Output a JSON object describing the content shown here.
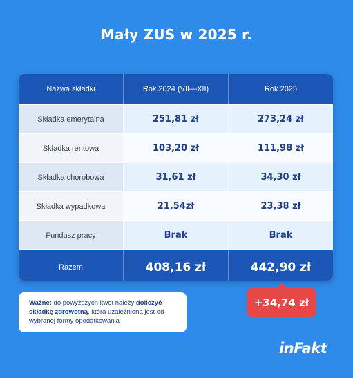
{
  "title": "Mały ZUS w 2025 r.",
  "table": {
    "headers": [
      "Nazwa składki",
      "Rok 2024 (VII—XII)",
      "Rok 2025"
    ],
    "rows": [
      {
        "name": "Składka emerytalna",
        "y2024": "251,81 zł",
        "y2025": "273,24 zł"
      },
      {
        "name": "Składka rentowa",
        "y2024": "103,20 zł",
        "y2025": "111,98 zł"
      },
      {
        "name": "Składka chorobowa",
        "y2024": "31,61 zł",
        "y2025": "34,30 zł"
      },
      {
        "name": "Składka wypadkowa",
        "y2024": "21,54zł",
        "y2025": "23,38 zł"
      },
      {
        "name": "Fundusz pracy",
        "y2024": "Brak",
        "y2025": "Brak"
      }
    ],
    "total": {
      "name": "Razem",
      "y2024": "408,16 zł",
      "y2025": "442,90 zł"
    }
  },
  "difference_badge": "+34,74 zł",
  "note": {
    "label": "Ważne:",
    "text_1": " do powyższych kwot należy ",
    "bold_1": "doliczyć składkę zdrowotną",
    "text_2": ", która uzależniona jest od wybranej formy opodatkowania"
  },
  "logo": "inFakt",
  "colors": {
    "background": "#2f8be9",
    "header": "#1c57b5",
    "badge": "#e84747",
    "value_text": "#1f3f8a"
  }
}
